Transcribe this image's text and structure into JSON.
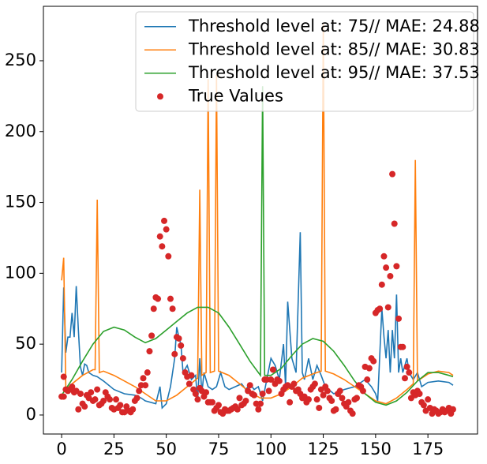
{
  "chart_data": {
    "type": "line",
    "xlim": [
      -8.7,
      198.7
    ],
    "ylim": [
      -13.4,
      288.4
    ],
    "xticks": [
      0,
      25,
      50,
      75,
      100,
      125,
      150,
      175
    ],
    "yticks": [
      0,
      50,
      100,
      150,
      200,
      250
    ],
    "legend": "upper right",
    "series": [
      {
        "name": "Threshold level at: 75// MAE: 24.88",
        "color": "#1f77b4",
        "type": "line",
        "x": [
          0,
          1,
          2,
          3,
          4,
          5,
          6,
          7,
          8,
          9,
          10,
          11,
          12,
          13,
          15,
          17,
          20,
          25,
          30,
          35,
          38,
          40,
          45,
          47,
          48,
          50,
          52,
          54,
          55,
          56,
          57,
          58,
          60,
          62,
          64,
          65,
          66,
          67,
          68,
          70,
          72,
          74,
          76,
          78,
          80,
          83,
          86,
          88,
          90,
          92,
          94,
          96,
          98,
          100,
          102,
          104,
          106,
          107,
          108,
          110,
          112,
          114,
          115,
          116,
          118,
          120,
          122,
          124,
          126,
          130,
          135,
          140,
          145,
          148,
          150,
          151,
          153,
          154,
          155,
          156,
          157,
          158,
          159,
          160,
          161,
          162,
          163,
          165,
          166,
          168,
          170,
          172,
          175,
          180,
          185,
          187
        ],
        "values": [
          30,
          90,
          44,
          55,
          55,
          72,
          55,
          91,
          60,
          34,
          28,
          36,
          35,
          30,
          28,
          27,
          24,
          18,
          15,
          14,
          12,
          10,
          8,
          20,
          5,
          8,
          20,
          40,
          62,
          55,
          50,
          30,
          35,
          25,
          28,
          10,
          40,
          15,
          30,
          20,
          18,
          20,
          30,
          20,
          18,
          20,
          22,
          18,
          22,
          18,
          20,
          10,
          25,
          40,
          35,
          25,
          50,
          20,
          80,
          40,
          30,
          129,
          30,
          25,
          40,
          25,
          35,
          28,
          20,
          15,
          18,
          20,
          25,
          20,
          15,
          10,
          75,
          55,
          40,
          60,
          30,
          60,
          40,
          85,
          30,
          40,
          30,
          40,
          30,
          25,
          30,
          20,
          23,
          24,
          23,
          21
        ]
      },
      {
        "name": "Threshold level at: 85// MAE: 30.83",
        "color": "#ff7f0e",
        "type": "line",
        "x": [
          0,
          1,
          2,
          5,
          10,
          15,
          16,
          17,
          18,
          20,
          25,
          30,
          35,
          40,
          45,
          50,
          55,
          60,
          65,
          66,
          67,
          69,
          70,
          71,
          73,
          74,
          75,
          80,
          85,
          90,
          95,
          100,
          105,
          110,
          115,
          120,
          124,
          125,
          126,
          130,
          135,
          140,
          145,
          150,
          155,
          160,
          165,
          168,
          169,
          170,
          175,
          180,
          185,
          187
        ],
        "values": [
          95,
          111,
          18,
          22,
          28,
          32,
          32,
          152,
          30,
          31,
          28,
          24,
          20,
          15,
          10,
          10,
          14,
          20,
          26,
          159,
          28,
          30,
          237,
          30,
          31,
          240,
          31,
          28,
          22,
          16,
          12,
          12,
          15,
          20,
          26,
          29,
          31,
          276,
          31,
          29,
          25,
          20,
          15,
          10,
          8,
          12,
          18,
          22,
          180,
          24,
          29,
          31,
          30,
          28
        ]
      },
      {
        "name": "Threshold level at: 95// MAE: 37.53",
        "color": "#2ca02c",
        "type": "line",
        "x": [
          0,
          5,
          10,
          15,
          20,
          25,
          30,
          35,
          40,
          45,
          50,
          55,
          60,
          65,
          70,
          75,
          80,
          85,
          90,
          95,
          96,
          97,
          100,
          105,
          110,
          115,
          120,
          125,
          130,
          135,
          140,
          145,
          150,
          155,
          160,
          165,
          170,
          175,
          180,
          185,
          187
        ],
        "values": [
          14,
          25,
          38,
          50,
          59,
          62,
          60,
          55,
          51,
          54,
          60,
          66,
          72,
          76,
          76,
          72,
          62,
          50,
          38,
          28,
          232,
          28,
          28,
          33,
          42,
          50,
          54,
          52,
          45,
          35,
          24,
          15,
          9,
          7,
          10,
          16,
          24,
          30,
          30,
          28,
          27
        ]
      },
      {
        "name": "True Values",
        "color": "#d62728",
        "type": "scatter",
        "x": [
          0,
          1,
          1,
          2,
          3,
          4,
          5,
          6,
          7,
          8,
          9,
          10,
          11,
          12,
          13,
          14,
          15,
          16,
          17,
          18,
          19,
          20,
          21,
          22,
          23,
          24,
          25,
          26,
          27,
          28,
          29,
          30,
          31,
          32,
          33,
          34,
          35,
          36,
          37,
          38,
          39,
          40,
          41,
          42,
          43,
          44,
          45,
          46,
          47,
          48,
          49,
          50,
          51,
          52,
          53,
          54,
          55,
          56,
          57,
          58,
          59,
          60,
          61,
          62,
          63,
          64,
          65,
          66,
          67,
          68,
          69,
          70,
          71,
          72,
          73,
          74,
          75,
          76,
          77,
          78,
          79,
          80,
          81,
          82,
          83,
          84,
          85,
          86,
          87,
          88,
          89,
          90,
          91,
          92,
          93,
          94,
          95,
          96,
          97,
          98,
          99,
          100,
          101,
          102,
          103,
          104,
          105,
          106,
          107,
          108,
          109,
          110,
          111,
          112,
          113,
          114,
          115,
          116,
          117,
          118,
          119,
          120,
          121,
          122,
          123,
          124,
          125,
          126,
          127,
          128,
          129,
          130,
          131,
          132,
          133,
          134,
          135,
          136,
          137,
          138,
          139,
          140,
          141,
          142,
          143,
          144,
          145,
          146,
          147,
          148,
          149,
          150,
          151,
          152,
          153,
          154,
          155,
          156,
          157,
          158,
          159,
          160,
          161,
          162,
          163,
          164,
          165,
          166,
          167,
          168,
          169,
          170,
          171,
          172,
          173,
          174,
          175,
          176,
          177,
          178,
          179,
          180,
          181,
          182,
          183,
          184,
          185,
          186,
          187
        ],
        "values": [
          13,
          13,
          27,
          18,
          17,
          18,
          20,
          16,
          17,
          4,
          15,
          8,
          6,
          14,
          12,
          16,
          10,
          11,
          18,
          7,
          8,
          10,
          16,
          13,
          11,
          5,
          4,
          11,
          5,
          7,
          2,
          2,
          6,
          3,
          2,
          4,
          10,
          12,
          17,
          21,
          26,
          21,
          30,
          45,
          56,
          75,
          83,
          82,
          126,
          119,
          137,
          131,
          112,
          82,
          75,
          43,
          55,
          54,
          49,
          40,
          30,
          27,
          22,
          28,
          18,
          15,
          11,
          19,
          17,
          13,
          16,
          9,
          9,
          9,
          3,
          5,
          7,
          2,
          1,
          4,
          3,
          3,
          4,
          5,
          6,
          4,
          12,
          7,
          8,
          10,
          17,
          21,
          15,
          14,
          8,
          4,
          8,
          15,
          25,
          25,
          17,
          25,
          32,
          22,
          25,
          24,
          15,
          18,
          20,
          21,
          9,
          20,
          22,
          17,
          18,
          15,
          12,
          13,
          9,
          11,
          18,
          20,
          22,
          11,
          5,
          18,
          14,
          20,
          17,
          12,
          10,
          3,
          4,
          15,
          17,
          12,
          8,
          6,
          9,
          3,
          1,
          11,
          12,
          21,
          20,
          17,
          34,
          25,
          33,
          40,
          38,
          72,
          74,
          75,
          92,
          112,
          104,
          76,
          98,
          170,
          135,
          105,
          68,
          48,
          48,
          26,
          34,
          30,
          12,
          16,
          14,
          17,
          15,
          9,
          7,
          3,
          11,
          5,
          1,
          4,
          3,
          1,
          2,
          4,
          2,
          3,
          5,
          1,
          4
        ]
      }
    ]
  }
}
